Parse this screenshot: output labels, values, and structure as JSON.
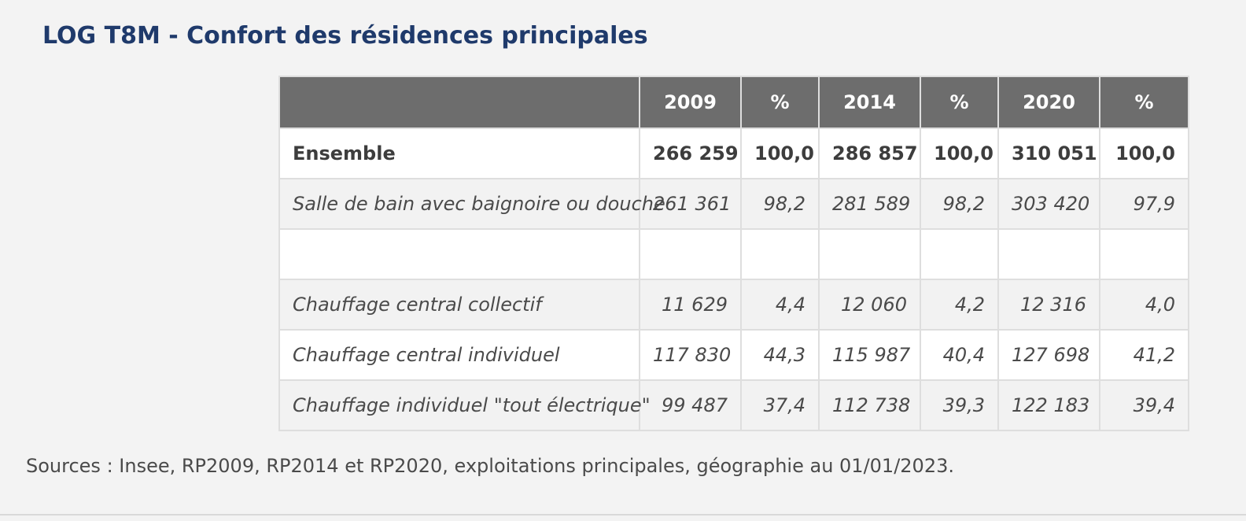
{
  "title": "LOG T8M - Confort des résidences principales",
  "table": {
    "headers": [
      "",
      "2009",
      "%",
      "2014",
      "%",
      "2020",
      "%"
    ],
    "rows": [
      {
        "label": "Ensemble",
        "values": [
          "266 259",
          "100,0",
          "286 857",
          "100,0",
          "310 051",
          "100,0"
        ]
      },
      {
        "label": "Salle de bain avec baignoire ou douche",
        "values": [
          "261 361",
          "98,2",
          "281 589",
          "98,2",
          "303 420",
          "97,9"
        ]
      },
      {
        "label": "",
        "values": [
          "",
          "",
          "",
          "",
          "",
          ""
        ]
      },
      {
        "label": "Chauffage central collectif",
        "values": [
          "11 629",
          "4,4",
          "12 060",
          "4,2",
          "12 316",
          "4,0"
        ]
      },
      {
        "label": "Chauffage central individuel",
        "values": [
          "117 830",
          "44,3",
          "115 987",
          "40,4",
          "127 698",
          "41,2"
        ]
      },
      {
        "label": "Chauffage individuel \"tout électrique\"",
        "values": [
          "99 487",
          "37,4",
          "112 738",
          "39,3",
          "122 183",
          "39,4"
        ]
      }
    ]
  },
  "source": "Sources : Insee, RP2009, RP2014 et RP2020, exploitations principales, géographie au 01/01/2023.",
  "colors": {
    "title": "#1f3a6b",
    "header_bg": "#6d6d6d",
    "header_text": "#ffffff",
    "row_shade": "#f2f2f2",
    "text": "#4a4a4a"
  }
}
